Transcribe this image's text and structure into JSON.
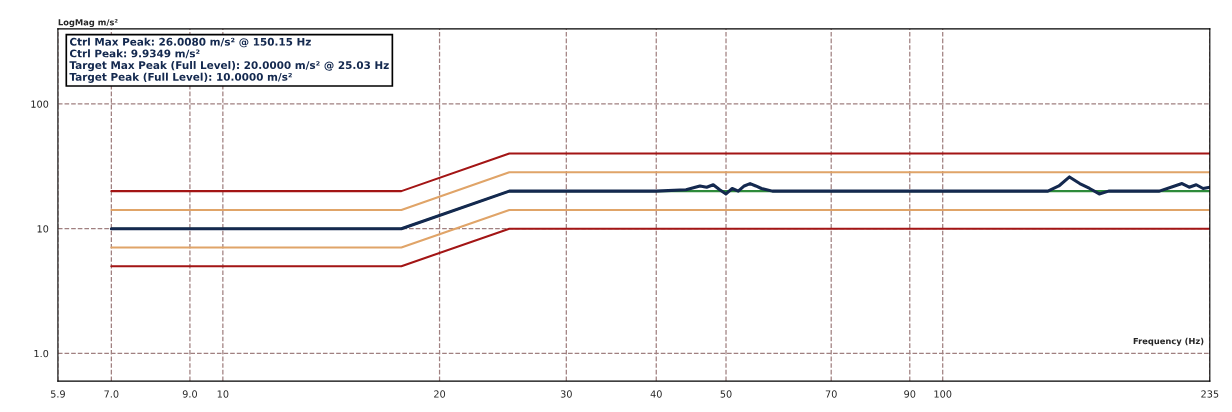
{
  "chart_data": {
    "type": "line",
    "ylabel": "LogMag m/s²",
    "xlabel": "Frequency (Hz)",
    "log": "xy",
    "xlim": [
      5.9,
      235
    ],
    "ylim": [
      0.6,
      400
    ],
    "xticks": [
      5.9,
      {
        "value": 7,
        "label": "7.0"
      },
      {
        "value": 9,
        "label": "9.0"
      },
      10,
      20,
      30,
      40,
      50,
      70,
      90,
      100,
      235
    ],
    "yticks": [
      {
        "value": 1,
        "label": "1.0"
      },
      10,
      100
    ],
    "grid": true,
    "line_style": "solid",
    "marker": "none",
    "series": [
      {
        "color": "#a31515",
        "x": [
          7,
          17.7,
          25,
          235
        ],
        "values": [
          20,
          20,
          40,
          40
        ]
      },
      {
        "color": "#e0a468",
        "x": [
          7,
          17.7,
          25,
          235
        ],
        "values": [
          14.1,
          14.1,
          28.3,
          28.3
        ]
      },
      {
        "color": "#e0a468",
        "x": [
          7,
          17.7,
          25,
          235
        ],
        "values": [
          7.07,
          7.07,
          14.1,
          14.1
        ]
      },
      {
        "color": "#a31515",
        "x": [
          7,
          17.7,
          25,
          235
        ],
        "values": [
          5,
          5,
          10,
          10
        ]
      },
      {
        "color": "#2e8b3a",
        "x": [
          7,
          17.7,
          25,
          235
        ],
        "values": [
          10,
          10,
          20,
          20
        ]
      },
      {
        "color": "#14294f",
        "x": [
          7,
          10,
          15,
          17.7,
          25,
          30,
          40,
          44,
          46,
          47,
          48,
          49,
          50,
          51,
          52,
          53,
          54,
          55,
          56,
          58,
          70,
          100,
          140,
          145,
          150,
          155,
          160,
          165,
          170,
          180,
          200,
          210,
          215,
          220,
          225,
          230,
          235
        ],
        "values": [
          10,
          10,
          10,
          10,
          20,
          20,
          20,
          20.5,
          22,
          21.5,
          22.5,
          20.5,
          19,
          21,
          20,
          22,
          23,
          22,
          21,
          20,
          20,
          20,
          20,
          22,
          26,
          23,
          21,
          19,
          20,
          20,
          20,
          22,
          23,
          21.5,
          22.5,
          21,
          21.5
        ]
      }
    ],
    "annotations": [
      "Ctrl Max Peak: 26.0080 m/s² @ 150.15 Hz",
      "Ctrl Peak: 9.9349 m/s²",
      "Target Max Peak (Full Level): 20.0000 m/s² @ 25.03 Hz",
      "Target Peak (Full Level): 10.0000 m/s²"
    ]
  }
}
